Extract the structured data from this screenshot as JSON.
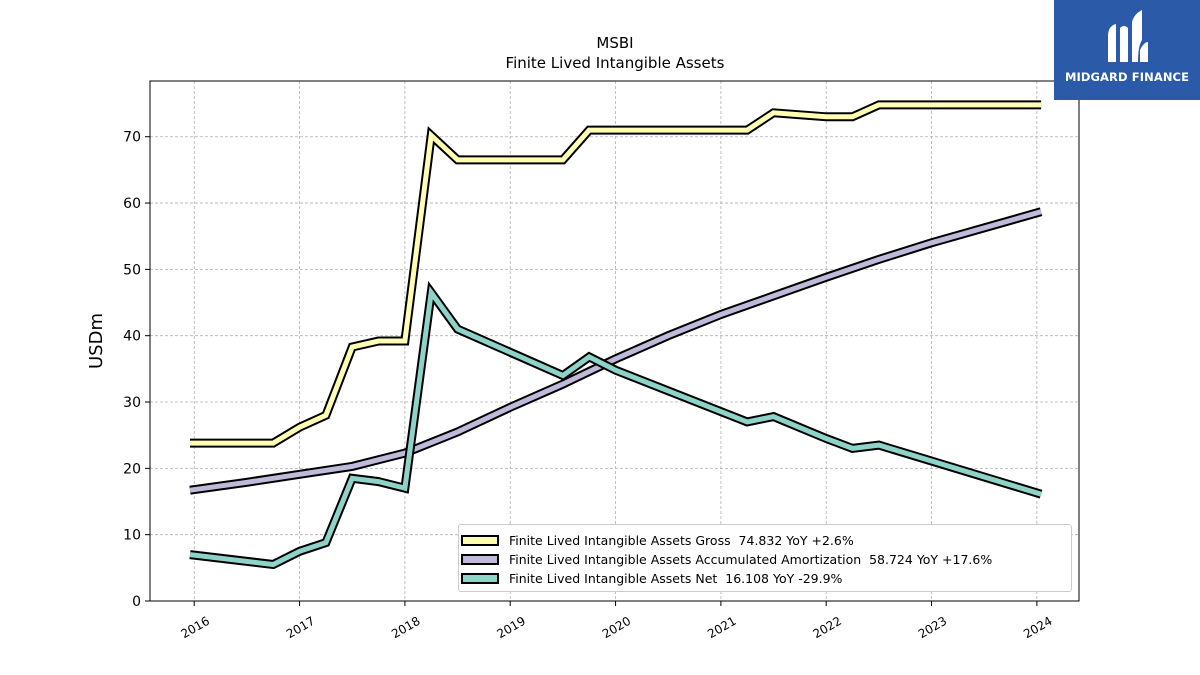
{
  "chart_data": {
    "type": "line",
    "title": "MSBI",
    "subtitle": "Finite Lived Intangible Assets",
    "xlabel": "",
    "ylabel": "USDm",
    "ylim": [
      0,
      78.4
    ],
    "xlim": [
      2015.58,
      2024.4
    ],
    "grid": true,
    "legend_position": "bottom-right",
    "x_ticks": [
      2016,
      2017,
      2018,
      2019,
      2020,
      2021,
      2022,
      2023,
      2024
    ],
    "x_tick_labels": [
      "2016",
      "2017",
      "2018",
      "2019",
      "2020",
      "2021",
      "2022",
      "2023",
      "2024"
    ],
    "y_ticks": [
      0,
      10,
      20,
      30,
      40,
      50,
      60,
      70
    ],
    "y_tick_labels": [
      "0",
      "10",
      "20",
      "30",
      "40",
      "50",
      "60",
      "70"
    ],
    "series": [
      {
        "name": "Finite Lived Intangible Assets Gross",
        "legend_label": "Finite Lived Intangible Assets Gross  74.832 YoY +2.6%",
        "color": "#ffffb3",
        "x": [
          2015.96,
          2016.75,
          2017.0,
          2017.25,
          2017.5,
          2017.75,
          2018.0,
          2018.25,
          2018.5,
          2018.75,
          2019.0,
          2019.25,
          2019.5,
          2019.75,
          2020.0,
          2021.25,
          2021.5,
          2022.0,
          2022.25,
          2022.5,
          2022.75,
          2024.04
        ],
        "y": [
          23.8,
          23.8,
          26.2,
          28.0,
          38.3,
          39.2,
          39.2,
          70.2,
          66.5,
          66.5,
          66.5,
          66.5,
          66.5,
          71.0,
          71.0,
          71.0,
          73.6,
          73.0,
          73.0,
          74.8,
          74.8,
          74.8
        ]
      },
      {
        "name": "Finite Lived Intangible Assets Accumulated Amortization",
        "legend_label": "Finite Lived Intangible Assets Accumulated Amortization  58.724 YoY +17.6%",
        "color": "#bebada",
        "x": [
          2015.96,
          2016.5,
          2017.0,
          2017.5,
          2018.0,
          2018.5,
          2019.0,
          2019.5,
          2020.0,
          2020.5,
          2021.0,
          2021.5,
          2022.0,
          2022.5,
          2023.0,
          2024.04
        ],
        "y": [
          16.7,
          17.9,
          19.1,
          20.3,
          22.3,
          25.5,
          29.2,
          32.7,
          36.5,
          40.0,
          43.2,
          46.0,
          48.8,
          51.5,
          54.0,
          58.7
        ]
      },
      {
        "name": "Finite Lived Intangible Assets Net",
        "legend_label": "Finite Lived Intangible Assets Net  16.108 YoY -29.9%",
        "color": "#8dd3c7",
        "x": [
          2015.96,
          2016.75,
          2017.0,
          2017.25,
          2017.5,
          2017.75,
          2018.0,
          2018.25,
          2018.5,
          2019.5,
          2019.75,
          2020.0,
          2021.25,
          2021.5,
          2022.0,
          2022.25,
          2022.5,
          2024.04
        ],
        "y": [
          7.0,
          5.5,
          7.5,
          8.8,
          18.5,
          18.0,
          17.0,
          46.5,
          41.0,
          34.0,
          36.8,
          34.8,
          27.0,
          27.8,
          24.5,
          23.0,
          23.5,
          16.1
        ]
      }
    ]
  },
  "logo": {
    "text": "MIDGARD FINANCE",
    "background": "#2a5aa8",
    "icon": "midgard-logo-mark"
  }
}
